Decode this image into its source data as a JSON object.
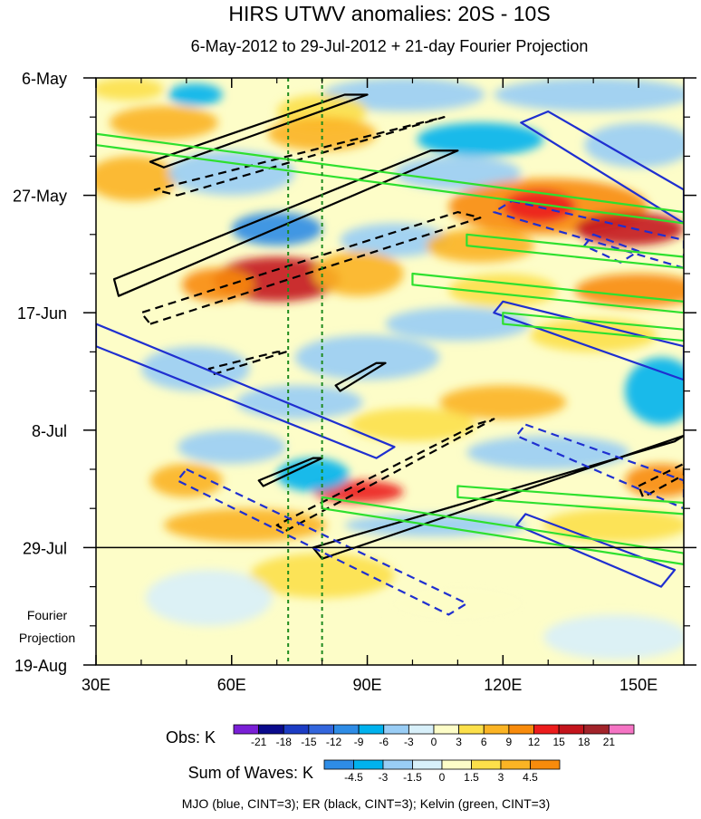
{
  "chart_data": {
    "type": "heatmap",
    "title": "HIRS UTWV anomalies: 20S - 10S",
    "subtitle": "6-May-2012 to 29-Jul-2012 + 21-day Fourier Projection",
    "x_axis": {
      "range": [
        30,
        160
      ],
      "ticks": [
        30,
        60,
        90,
        120,
        150
      ],
      "tick_labels": [
        "30E",
        "60E",
        "90E",
        "120E",
        "150E"
      ]
    },
    "y_axis": {
      "range_days": [
        0,
        105
      ],
      "ticks_days": [
        0,
        21,
        42,
        63,
        84,
        105
      ],
      "tick_labels": [
        "6-May",
        "27-May",
        "17-Jun",
        "8-Jul",
        "29-Jul",
        "19-Aug"
      ],
      "projection_label_line1": "Fourier",
      "projection_label_line2": "Projection",
      "projection_start_day": 84
    },
    "reference_lines_lon": [
      72.5,
      80
    ],
    "obs_colorbar": {
      "label": "Obs: K",
      "levels": [
        "-21",
        "-18",
        "-15",
        "-12",
        "-9",
        "-6",
        "-3",
        "0",
        "3",
        "6",
        "9",
        "12",
        "15",
        "18",
        "21"
      ],
      "colors": [
        "#7a1fd6",
        "#0a0a8c",
        "#1c3cc4",
        "#3366dd",
        "#2e8ce6",
        "#00b2ee",
        "#99cdf5",
        "#d8f0fa",
        "#fdfdc8",
        "#fce04a",
        "#fbb424",
        "#f88b0c",
        "#ec1c1c",
        "#c4141c",
        "#a2232a",
        "#f574c4"
      ]
    },
    "waves_colorbar": {
      "label": "Sum of Waves: K",
      "levels": [
        "-4.5",
        "-3",
        "-1.5",
        "0",
        "1.5",
        "3",
        "4.5"
      ],
      "colors": [
        "#2e8ce6",
        "#00b2ee",
        "#99cdf5",
        "#d8f0fa",
        "#fdfdc8",
        "#fce04a",
        "#fbb424",
        "#f88b0c"
      ]
    },
    "legend_note": "MJO (blue, CINT=3); ER (black, CINT=3); Kelvin (green, CINT=3)",
    "anomaly_blobs": [
      {
        "lon": 37,
        "day": 2,
        "dlon": 8,
        "dday": 2,
        "value": 4
      },
      {
        "lon": 52,
        "day": 3,
        "dlon": 6,
        "dday": 2,
        "value": -7
      },
      {
        "lon": 98,
        "day": 3,
        "dlon": 18,
        "dday": 3,
        "value": -6
      },
      {
        "lon": 140,
        "day": 3,
        "dlon": 22,
        "dday": 3,
        "value": -5
      },
      {
        "lon": 80,
        "day": 6,
        "dlon": 10,
        "dday": 3,
        "value": 5
      },
      {
        "lon": 45,
        "day": 8,
        "dlon": 12,
        "dday": 3,
        "value": 6
      },
      {
        "lon": 80,
        "day": 10,
        "dlon": 12,
        "dday": 3,
        "value": 6
      },
      {
        "lon": 115,
        "day": 11,
        "dlon": 14,
        "dday": 3,
        "value": -7
      },
      {
        "lon": 150,
        "day": 12,
        "dlon": 12,
        "dday": 4,
        "value": -5
      },
      {
        "lon": 38,
        "day": 18,
        "dlon": 10,
        "dday": 4,
        "value": 6
      },
      {
        "lon": 60,
        "day": 17,
        "dlon": 14,
        "dday": 4,
        "value": -5
      },
      {
        "lon": 110,
        "day": 17,
        "dlon": 14,
        "dday": 3,
        "value": -5
      },
      {
        "lon": 130,
        "day": 23,
        "dlon": 22,
        "dday": 5,
        "value": 9
      },
      {
        "lon": 148,
        "day": 27,
        "dlon": 12,
        "dday": 3,
        "value": 16
      },
      {
        "lon": 128,
        "day": 23,
        "dlon": 8,
        "dday": 3,
        "value": 13
      },
      {
        "lon": 70,
        "day": 27,
        "dlon": 10,
        "dday": 3,
        "value": -12
      },
      {
        "lon": 96,
        "day": 29,
        "dlon": 12,
        "dday": 3,
        "value": -6
      },
      {
        "lon": 115,
        "day": 30,
        "dlon": 12,
        "dday": 3,
        "value": 6
      },
      {
        "lon": 70,
        "day": 36,
        "dlon": 14,
        "dday": 4,
        "value": 16
      },
      {
        "lon": 57,
        "day": 37,
        "dlon": 8,
        "dday": 3,
        "value": 9
      },
      {
        "lon": 88,
        "day": 35,
        "dlon": 10,
        "dday": 4,
        "value": 6
      },
      {
        "lon": 150,
        "day": 38,
        "dlon": 14,
        "dday": 3,
        "value": 9
      },
      {
        "lon": 120,
        "day": 38,
        "dlon": 12,
        "dday": 3,
        "value": 5
      },
      {
        "lon": 110,
        "day": 44,
        "dlon": 16,
        "dday": 3,
        "value": -6
      },
      {
        "lon": 140,
        "day": 46,
        "dlon": 14,
        "dday": 3,
        "value": 5
      },
      {
        "lon": 52,
        "day": 52,
        "dlon": 12,
        "dday": 4,
        "value": -6
      },
      {
        "lon": 90,
        "day": 50,
        "dlon": 16,
        "dday": 4,
        "value": -5
      },
      {
        "lon": 155,
        "day": 56,
        "dlon": 8,
        "dday": 6,
        "value": -7
      },
      {
        "lon": 120,
        "day": 58,
        "dlon": 14,
        "dday": 3,
        "value": 6
      },
      {
        "lon": 75,
        "day": 58,
        "dlon": 14,
        "dday": 3,
        "value": -6
      },
      {
        "lon": 100,
        "day": 62,
        "dlon": 14,
        "dday": 3,
        "value": 5
      },
      {
        "lon": 60,
        "day": 66,
        "dlon": 12,
        "dday": 3,
        "value": -5
      },
      {
        "lon": 130,
        "day": 67,
        "dlon": 18,
        "dday": 3,
        "value": -4
      },
      {
        "lon": 50,
        "day": 72,
        "dlon": 8,
        "dday": 3,
        "value": 7
      },
      {
        "lon": 88,
        "day": 74,
        "dlon": 10,
        "dday": 2,
        "value": 13
      },
      {
        "lon": 78,
        "day": 71,
        "dlon": 8,
        "dday": 3,
        "value": -7
      },
      {
        "lon": 155,
        "day": 72,
        "dlon": 8,
        "dday": 3,
        "value": 9
      },
      {
        "lon": 63,
        "day": 80,
        "dlon": 18,
        "dday": 3,
        "value": 7
      },
      {
        "lon": 105,
        "day": 80,
        "dlon": 20,
        "dday": 2,
        "value": -6
      },
      {
        "lon": 145,
        "day": 80,
        "dlon": 16,
        "dday": 3,
        "value": 5
      },
      {
        "lon": 80,
        "day": 89,
        "dlon": 16,
        "dday": 4,
        "value": 3
      },
      {
        "lon": 55,
        "day": 93,
        "dlon": 14,
        "dday": 5,
        "value": -2
      },
      {
        "lon": 110,
        "day": 94,
        "dlon": 16,
        "dday": 4,
        "value": 2
      },
      {
        "lon": 145,
        "day": 100,
        "dlon": 16,
        "dday": 4,
        "value": -2
      }
    ],
    "contours": [
      {
        "wave": "ER",
        "dashed": false,
        "points": [
          [
            45,
            16
          ],
          [
            90,
            3
          ],
          [
            85,
            3
          ],
          [
            42,
            15
          ]
        ]
      },
      {
        "wave": "ER",
        "dashed": true,
        "points": [
          [
            48,
            21
          ],
          [
            107,
            7
          ],
          [
            102,
            8
          ],
          [
            43,
            20
          ]
        ]
      },
      {
        "wave": "ER",
        "dashed": false,
        "points": [
          [
            35,
            39
          ],
          [
            110,
            13
          ],
          [
            104,
            13
          ],
          [
            34,
            36
          ]
        ]
      },
      {
        "wave": "ER",
        "dashed": true,
        "points": [
          [
            42,
            44
          ],
          [
            115,
            25
          ],
          [
            110,
            24
          ],
          [
            40,
            42
          ]
        ]
      },
      {
        "wave": "ER",
        "dashed": true,
        "points": [
          [
            56,
            53
          ],
          [
            72,
            49
          ],
          [
            70,
            49
          ],
          [
            55,
            52
          ]
        ]
      },
      {
        "wave": "ER",
        "dashed": false,
        "points": [
          [
            84,
            56
          ],
          [
            94,
            51
          ],
          [
            92,
            51
          ],
          [
            83,
            55
          ]
        ]
      },
      {
        "wave": "ER",
        "dashed": false,
        "points": [
          [
            67,
            73
          ],
          [
            80,
            68
          ],
          [
            78,
            68
          ],
          [
            66,
            72
          ]
        ]
      },
      {
        "wave": "ER",
        "dashed": true,
        "points": [
          [
            72,
            81
          ],
          [
            118,
            61
          ],
          [
            114,
            62
          ],
          [
            70,
            80
          ]
        ]
      },
      {
        "wave": "ER",
        "dashed": false,
        "points": [
          [
            80,
            86
          ],
          [
            160,
            64
          ],
          [
            158,
            65
          ],
          [
            78,
            84
          ]
        ]
      },
      {
        "wave": "ER",
        "dashed": true,
        "points": [
          [
            150,
            73
          ],
          [
            160,
            69
          ],
          [
            160,
            71
          ],
          [
            151,
            75
          ]
        ]
      },
      {
        "wave": "MJO",
        "dashed": false,
        "points": [
          [
            130,
            6
          ],
          [
            160,
            20
          ],
          [
            160,
            26
          ],
          [
            124,
            8
          ]
        ]
      },
      {
        "wave": "MJO",
        "dashed": true,
        "points": [
          [
            122,
            22
          ],
          [
            160,
            29
          ],
          [
            160,
            34
          ],
          [
            118,
            24
          ]
        ]
      },
      {
        "wave": "MJO",
        "dashed": true,
        "points": [
          [
            140,
            28
          ],
          [
            150,
            31
          ],
          [
            146,
            33
          ],
          [
            138,
            30
          ]
        ]
      },
      {
        "wave": "MJO",
        "dashed": false,
        "points": [
          [
            120,
            40
          ],
          [
            160,
            48
          ],
          [
            160,
            54
          ],
          [
            118,
            42
          ]
        ]
      },
      {
        "wave": "MJO",
        "dashed": false,
        "points": [
          [
            30,
            44
          ],
          [
            96,
            66
          ],
          [
            92,
            68
          ],
          [
            30,
            48
          ]
        ]
      },
      {
        "wave": "MJO",
        "dashed": true,
        "points": [
          [
            50,
            70
          ],
          [
            112,
            94
          ],
          [
            108,
            96
          ],
          [
            48,
            72
          ]
        ]
      },
      {
        "wave": "MJO",
        "dashed": true,
        "points": [
          [
            125,
            62
          ],
          [
            160,
            72
          ],
          [
            160,
            77
          ],
          [
            123,
            64
          ]
        ]
      },
      {
        "wave": "MJO",
        "dashed": false,
        "points": [
          [
            125,
            78
          ],
          [
            158,
            88
          ],
          [
            155,
            91
          ],
          [
            123,
            80
          ]
        ]
      },
      {
        "wave": "Kelvin",
        "dashed": false,
        "points": [
          [
            30,
            10
          ],
          [
            160,
            24
          ],
          [
            160,
            26
          ],
          [
            30,
            12
          ]
        ]
      },
      {
        "wave": "Kelvin",
        "dashed": false,
        "points": [
          [
            112,
            28
          ],
          [
            160,
            32
          ],
          [
            160,
            34
          ],
          [
            112,
            30
          ]
        ]
      },
      {
        "wave": "Kelvin",
        "dashed": false,
        "points": [
          [
            100,
            35
          ],
          [
            160,
            40
          ],
          [
            160,
            42
          ],
          [
            100,
            37
          ]
        ]
      },
      {
        "wave": "Kelvin",
        "dashed": false,
        "points": [
          [
            120,
            42
          ],
          [
            160,
            45
          ],
          [
            160,
            47
          ],
          [
            120,
            44
          ]
        ]
      },
      {
        "wave": "Kelvin",
        "dashed": false,
        "points": [
          [
            80,
            75
          ],
          [
            160,
            85
          ],
          [
            160,
            87
          ],
          [
            80,
            77
          ]
        ]
      },
      {
        "wave": "Kelvin",
        "dashed": false,
        "points": [
          [
            110,
            73
          ],
          [
            160,
            76
          ],
          [
            160,
            78
          ],
          [
            110,
            75
          ]
        ]
      }
    ]
  }
}
